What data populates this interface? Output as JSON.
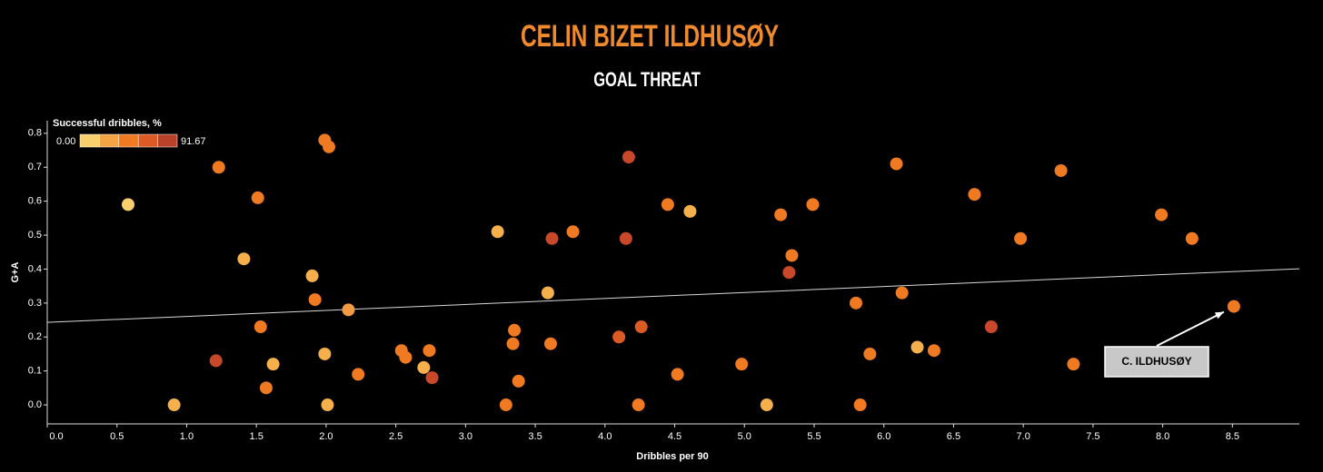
{
  "chart_data": {
    "type": "scatter",
    "title": "CELIN BIZET ILDHUSØY",
    "subtitle": "GOAL THREAT",
    "x_label": "Dribbles per 90",
    "y_label": "G+A",
    "legend": {
      "title": "Successful dribbles, %",
      "min_label": "0.00",
      "max_label": "91.67",
      "colors": [
        "#f7cf6c",
        "#f5a445",
        "#f07a21",
        "#dc5a24",
        "#b8432a"
      ]
    },
    "annotation": "C. ILDHUSØY",
    "x": [
      0.58,
      0.91,
      1.21,
      1.23,
      1.41,
      1.51,
      1.53,
      1.57,
      1.62,
      1.9,
      1.92,
      1.99,
      1.99,
      2.02,
      2.01,
      2.16,
      2.23,
      2.54,
      2.57,
      2.7,
      2.74,
      2.76,
      3.23,
      3.29,
      3.34,
      3.35,
      3.38,
      3.59,
      3.61,
      3.62,
      3.77,
      4.1,
      4.15,
      4.17,
      4.24,
      4.26,
      4.45,
      4.52,
      4.61,
      4.98,
      5.16,
      5.26,
      5.32,
      5.34,
      5.49,
      5.8,
      5.83,
      5.9,
      6.09,
      6.13,
      6.24,
      6.36,
      6.65,
      6.77,
      6.98,
      7.27,
      7.36,
      7.99,
      8.21,
      8.51
    ],
    "y": [
      0.59,
      0.0,
      0.13,
      0.7,
      0.43,
      0.61,
      0.23,
      0.05,
      0.12,
      0.38,
      0.31,
      0.15,
      0.78,
      0.76,
      0.0,
      0.28,
      0.09,
      0.16,
      0.14,
      0.11,
      0.16,
      0.08,
      0.51,
      0.0,
      0.18,
      0.22,
      0.07,
      0.33,
      0.18,
      0.49,
      0.51,
      0.2,
      0.49,
      0.73,
      0.0,
      0.23,
      0.59,
      0.09,
      0.57,
      0.12,
      0.0,
      0.56,
      0.39,
      0.44,
      0.59,
      0.3,
      0.0,
      0.15,
      0.71,
      0.33,
      0.17,
      0.16,
      0.62,
      0.23,
      0.49,
      0.69,
      0.12,
      0.56,
      0.49,
      0.29
    ],
    "colors": [
      "#f7cf6c",
      "#f5b04c",
      "#c9482a",
      "#f07a21",
      "#f5b04c",
      "#f07a21",
      "#f07a21",
      "#f07a21",
      "#f5b04c",
      "#f5b04c",
      "#f07a21",
      "#f5b04c",
      "#f07a21",
      "#f07a21",
      "#f5b04c",
      "#f39a45",
      "#f07a21",
      "#f07a21",
      "#f07a21",
      "#f5b04c",
      "#f07a21",
      "#c9482a",
      "#f5b04c",
      "#f07a21",
      "#f07a21",
      "#f07a21",
      "#f07a21",
      "#f5b04c",
      "#f07a21",
      "#c9482a",
      "#f07a21",
      "#dc5a24",
      "#c9482a",
      "#c9482a",
      "#f07a21",
      "#dc5a24",
      "#f07a21",
      "#f07a21",
      "#f5b04c",
      "#f07a21",
      "#f5b04c",
      "#f07a21",
      "#c9482a",
      "#f07a21",
      "#f07a21",
      "#f07a21",
      "#f07a21",
      "#f07a21",
      "#f07a21",
      "#f07a21",
      "#f5b04c",
      "#f07a21",
      "#f07a21",
      "#c9482a",
      "#f07a21",
      "#f07a21",
      "#f07a21",
      "#f07a21",
      "#f07a21",
      "#f07a21"
    ],
    "trend_line": {
      "x": [
        0,
        8.98
      ],
      "y": [
        0.243,
        0.401
      ],
      "color": "#d9d9d9"
    },
    "xlim": [
      0,
      8.98
    ],
    "ylim": [
      -0.056,
      0.837
    ],
    "xticks": [
      {
        "value": 0,
        "label": "0.0"
      },
      0.5,
      {
        "value": 1,
        "label": "1.0"
      },
      1.5,
      {
        "value": 2,
        "label": "2.0"
      },
      2.5,
      {
        "value": 3,
        "label": "3.0"
      },
      3.5,
      {
        "value": 4,
        "label": "4.0"
      },
      4.5,
      {
        "value": 5,
        "label": "5.0"
      },
      5.5,
      {
        "value": 6,
        "label": "6.0"
      },
      6.5,
      {
        "value": 7,
        "label": "7.0"
      },
      7.5,
      {
        "value": 8,
        "label": "8.0"
      },
      8.5
    ],
    "yticks": [
      {
        "value": 0,
        "label": "0.0"
      },
      0.1,
      0.2,
      0.3,
      0.4,
      0.5,
      0.6,
      0.7,
      0.8
    ]
  }
}
